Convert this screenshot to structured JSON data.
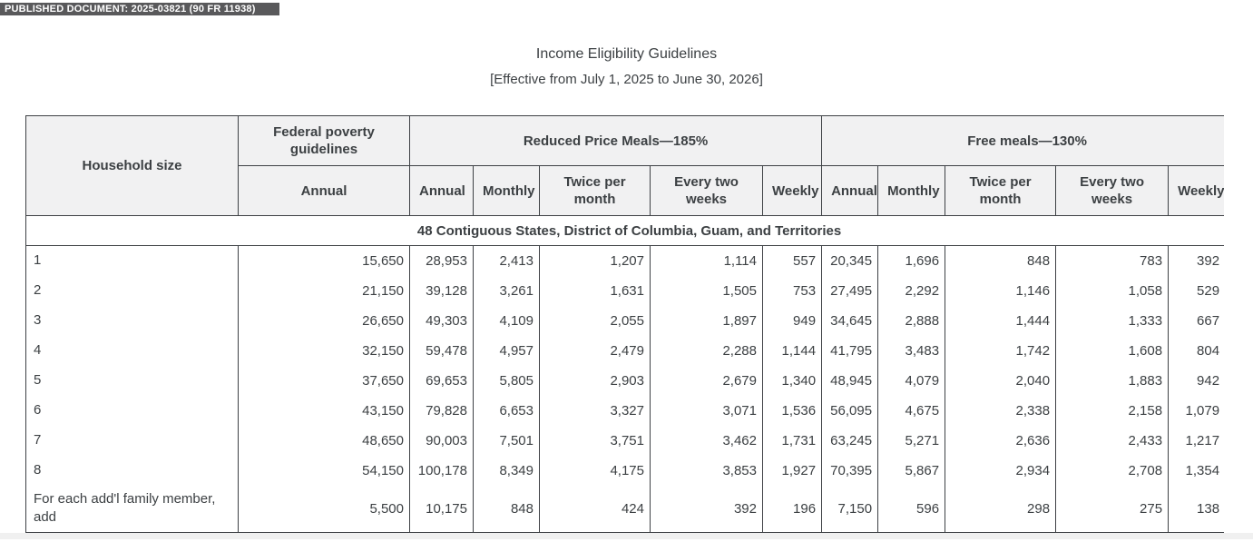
{
  "badge": {
    "label": "PUBLISHED DOCUMENT: 2025-03821 (90 FR 11938)"
  },
  "header": {
    "title": "Income Eligibility Guidelines",
    "subtitle": "[Effective from July 1, 2025 to June 30, 2026]"
  },
  "table": {
    "columns": {
      "household": "Household size",
      "fpg_group": "Federal poverty guidelines",
      "fpg_sub": "Annual",
      "reduced_group": "Reduced Price Meals—185%",
      "free_group": "Free meals—130%",
      "period_subs": [
        "Annual",
        "Monthly",
        "Twice per month",
        "Every two weeks",
        "Weekly"
      ]
    },
    "section_label": "48 Contiguous States, District of Columbia, Guam, and Territories",
    "rows": [
      {
        "label": "1",
        "values": [
          "15,650",
          "28,953",
          "2,413",
          "1,207",
          "1,114",
          "557",
          "20,345",
          "1,696",
          "848",
          "783",
          "392"
        ]
      },
      {
        "label": "2",
        "values": [
          "21,150",
          "39,128",
          "3,261",
          "1,631",
          "1,505",
          "753",
          "27,495",
          "2,292",
          "1,146",
          "1,058",
          "529"
        ]
      },
      {
        "label": "3",
        "values": [
          "26,650",
          "49,303",
          "4,109",
          "2,055",
          "1,897",
          "949",
          "34,645",
          "2,888",
          "1,444",
          "1,333",
          "667"
        ]
      },
      {
        "label": "4",
        "values": [
          "32,150",
          "59,478",
          "4,957",
          "2,479",
          "2,288",
          "1,144",
          "41,795",
          "3,483",
          "1,742",
          "1,608",
          "804"
        ]
      },
      {
        "label": "5",
        "values": [
          "37,650",
          "69,653",
          "5,805",
          "2,903",
          "2,679",
          "1,340",
          "48,945",
          "4,079",
          "2,040",
          "1,883",
          "942"
        ]
      },
      {
        "label": "6",
        "values": [
          "43,150",
          "79,828",
          "6,653",
          "3,327",
          "3,071",
          "1,536",
          "56,095",
          "4,675",
          "2,338",
          "2,158",
          "1,079"
        ]
      },
      {
        "label": "7",
        "values": [
          "48,650",
          "90,003",
          "7,501",
          "3,751",
          "3,462",
          "1,731",
          "63,245",
          "5,271",
          "2,636",
          "2,433",
          "1,217"
        ]
      },
      {
        "label": "8",
        "values": [
          "54,150",
          "100,178",
          "8,349",
          "4,175",
          "3,853",
          "1,927",
          "70,395",
          "5,867",
          "2,934",
          "2,708",
          "1,354"
        ]
      },
      {
        "label": "For each add'l family member, add",
        "values": [
          "5,500",
          "10,175",
          "848",
          "424",
          "392",
          "196",
          "7,150",
          "596",
          "298",
          "275",
          "138"
        ]
      }
    ]
  },
  "colors": {
    "badge_bg": "#59595b",
    "header_bg": "#f1f1f2",
    "border": "#3e4145",
    "text": "#3c4043"
  }
}
